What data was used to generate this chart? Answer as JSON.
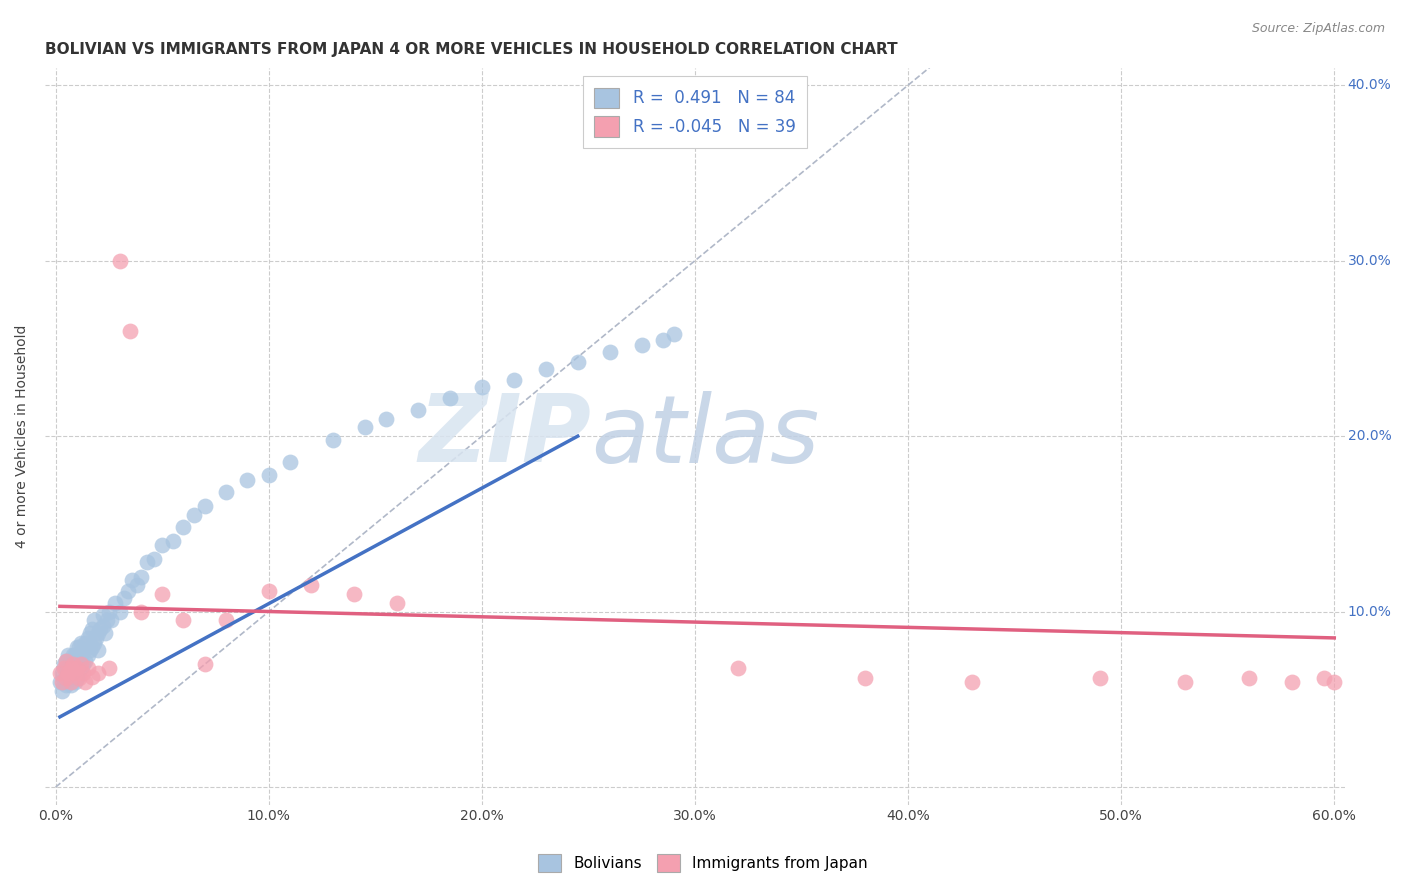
{
  "title": "BOLIVIAN VS IMMIGRANTS FROM JAPAN 4 OR MORE VEHICLES IN HOUSEHOLD CORRELATION CHART",
  "source": "Source: ZipAtlas.com",
  "ylabel": "4 or more Vehicles in Household",
  "xlim": [
    -0.005,
    0.605
  ],
  "ylim": [
    -0.01,
    0.41
  ],
  "xticks": [
    0.0,
    0.1,
    0.2,
    0.3,
    0.4,
    0.5,
    0.6
  ],
  "yticks": [
    0.0,
    0.1,
    0.2,
    0.3,
    0.4
  ],
  "xtick_labels": [
    "0.0%",
    "10.0%",
    "20.0%",
    "30.0%",
    "40.0%",
    "50.0%",
    "60.0%"
  ],
  "ytick_labels_right": [
    "",
    "10.0%",
    "20.0%",
    "30.0%",
    "40.0%"
  ],
  "legend1_label": "Bolivians",
  "legend2_label": "Immigrants from Japan",
  "blue_R": "0.491",
  "blue_N": "84",
  "pink_R": "-0.045",
  "pink_N": "39",
  "blue_color": "#a8c4e0",
  "pink_color": "#f4a0b0",
  "blue_line_color": "#4472c4",
  "pink_line_color": "#e06080",
  "watermark_zip": "ZIP",
  "watermark_atlas": "atlas",
  "watermark_color": "#d0dff0",
  "diag_line_color": "#b0b8c8",
  "title_fontsize": 11,
  "axis_label_fontsize": 10,
  "tick_fontsize": 10,
  "legend_fontsize": 12,
  "blue_points_x": [
    0.002,
    0.003,
    0.003,
    0.004,
    0.004,
    0.005,
    0.005,
    0.005,
    0.006,
    0.006,
    0.006,
    0.007,
    0.007,
    0.007,
    0.008,
    0.008,
    0.008,
    0.009,
    0.009,
    0.009,
    0.009,
    0.01,
    0.01,
    0.01,
    0.01,
    0.01,
    0.011,
    0.011,
    0.012,
    0.012,
    0.012,
    0.013,
    0.013,
    0.014,
    0.014,
    0.015,
    0.015,
    0.016,
    0.016,
    0.017,
    0.017,
    0.018,
    0.018,
    0.019,
    0.02,
    0.02,
    0.021,
    0.022,
    0.022,
    0.023,
    0.024,
    0.025,
    0.026,
    0.028,
    0.03,
    0.032,
    0.034,
    0.036,
    0.038,
    0.04,
    0.043,
    0.046,
    0.05,
    0.055,
    0.06,
    0.065,
    0.07,
    0.08,
    0.09,
    0.1,
    0.11,
    0.13,
    0.145,
    0.155,
    0.17,
    0.185,
    0.2,
    0.215,
    0.23,
    0.245,
    0.26,
    0.275,
    0.285,
    0.29
  ],
  "blue_points_y": [
    0.06,
    0.065,
    0.055,
    0.07,
    0.06,
    0.068,
    0.058,
    0.072,
    0.062,
    0.068,
    0.075,
    0.065,
    0.072,
    0.058,
    0.068,
    0.075,
    0.062,
    0.07,
    0.065,
    0.075,
    0.06,
    0.068,
    0.075,
    0.062,
    0.07,
    0.08,
    0.072,
    0.08,
    0.068,
    0.076,
    0.082,
    0.07,
    0.078,
    0.072,
    0.082,
    0.075,
    0.085,
    0.078,
    0.088,
    0.08,
    0.09,
    0.082,
    0.095,
    0.085,
    0.078,
    0.088,
    0.09,
    0.092,
    0.098,
    0.088,
    0.095,
    0.1,
    0.095,
    0.105,
    0.1,
    0.108,
    0.112,
    0.118,
    0.115,
    0.12,
    0.128,
    0.13,
    0.138,
    0.14,
    0.148,
    0.155,
    0.16,
    0.168,
    0.175,
    0.178,
    0.185,
    0.198,
    0.205,
    0.21,
    0.215,
    0.222,
    0.228,
    0.232,
    0.238,
    0.242,
    0.248,
    0.252,
    0.255,
    0.258
  ],
  "pink_points_x": [
    0.002,
    0.003,
    0.004,
    0.005,
    0.005,
    0.006,
    0.007,
    0.007,
    0.008,
    0.009,
    0.01,
    0.011,
    0.012,
    0.013,
    0.014,
    0.015,
    0.017,
    0.02,
    0.025,
    0.03,
    0.035,
    0.04,
    0.05,
    0.06,
    0.07,
    0.08,
    0.1,
    0.12,
    0.14,
    0.16,
    0.32,
    0.38,
    0.43,
    0.49,
    0.53,
    0.56,
    0.58,
    0.595,
    0.6
  ],
  "pink_points_y": [
    0.065,
    0.06,
    0.068,
    0.062,
    0.072,
    0.065,
    0.06,
    0.068,
    0.07,
    0.065,
    0.068,
    0.062,
    0.07,
    0.065,
    0.06,
    0.068,
    0.063,
    0.065,
    0.068,
    0.3,
    0.26,
    0.1,
    0.11,
    0.095,
    0.07,
    0.095,
    0.112,
    0.115,
    0.11,
    0.105,
    0.068,
    0.062,
    0.06,
    0.062,
    0.06,
    0.062,
    0.06,
    0.062,
    0.06
  ],
  "blue_line_x": [
    0.002,
    0.245
  ],
  "blue_line_y_start": 0.04,
  "blue_line_y_end": 0.2,
  "pink_line_x": [
    0.002,
    0.6
  ],
  "pink_line_y_start": 0.103,
  "pink_line_y_end": 0.085
}
